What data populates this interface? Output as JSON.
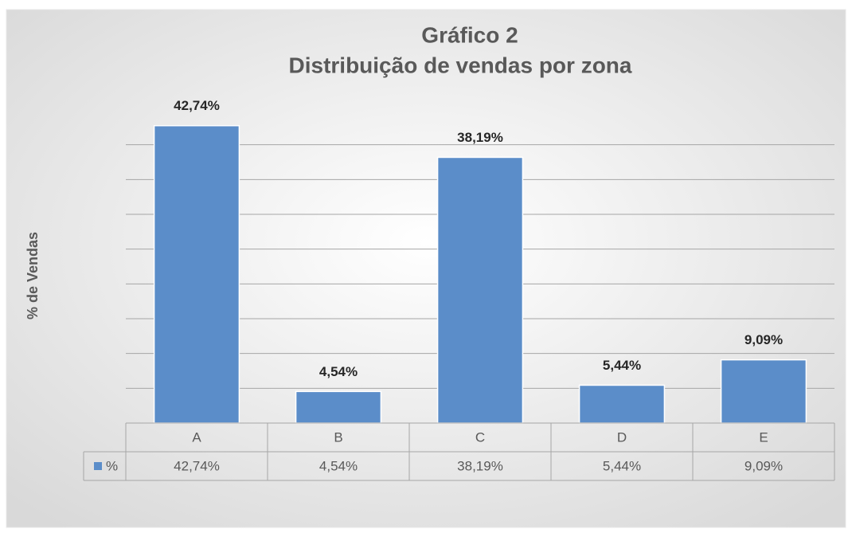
{
  "chart_data": {
    "type": "bar",
    "title": "Gráfico 2",
    "subtitle": "Distribuição de vendas por zona",
    "y_label": "% de Vendas",
    "categories": [
      "A",
      "B",
      "C",
      "D",
      "E"
    ],
    "series": [
      {
        "name": "%",
        "color": "#5b8dc9",
        "values": [
          42.74,
          4.54,
          38.19,
          5.44,
          9.09
        ],
        "value_labels": [
          "42,74%",
          "4,54%",
          "38,19%",
          "5,44%",
          "9,09%"
        ]
      }
    ],
    "ylim": [
      0,
      45
    ],
    "yticks": [
      0,
      5,
      10,
      15,
      20,
      25,
      30,
      35,
      40
    ],
    "grid": true,
    "data_table": true
  }
}
